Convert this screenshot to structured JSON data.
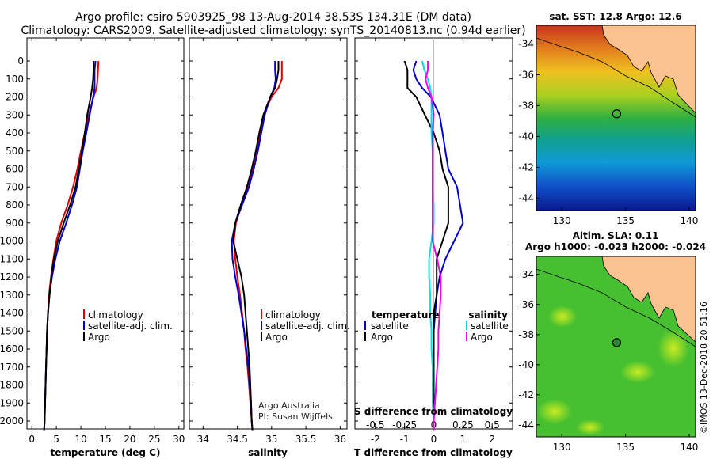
{
  "header": {
    "title_line1": "Argo profile: csiro 5903925_98 13-Aug-2014 38.53S 134.31E (DM data)",
    "title_line2": "Climatology: CARS2009. Satellite-adjusted climatology: synTS_20140813.nc (0.94d earlier)"
  },
  "side": {
    "sst_title": "sat. SST: 12.8 Argo: 12.6",
    "sla_title1": "Altim. SLA: 0.11",
    "sla_title2": "Argo h1000: -0.023 h2000: -0.024",
    "credit": "©IMOS 13-Dec-2018 20:51:16"
  },
  "legend": {
    "climatology": "climatology",
    "satellite_adj": "satellite-adj. clim.",
    "argo": "Argo",
    "temperature": "temperature",
    "salinity": "salinity",
    "satellite": "satellite"
  },
  "annotations": {
    "argo_australia": "Argo Australia",
    "pi": "PI: Susan Wijffels",
    "s_diff": "S difference from climatology"
  },
  "colors": {
    "climatology": "#e00000",
    "satellite": "#0000cc",
    "argo": "#000000",
    "sal_satellite": "#00e0e0",
    "sal_argo": "#ee00ee",
    "land": "#f9c28f",
    "coast": "#000000"
  },
  "chart_data": [
    {
      "type": "line",
      "panel": "temperature",
      "xlabel": "temperature (deg C)",
      "ylabel": "",
      "xlim": [
        -1,
        31
      ],
      "ylim": [
        2080,
        0
      ],
      "xticks": [
        0,
        5,
        10,
        15,
        20,
        25,
        30
      ],
      "yticks": [
        0,
        100,
        200,
        300,
        400,
        500,
        600,
        700,
        800,
        900,
        1000,
        1100,
        1200,
        1300,
        1400,
        1500,
        1600,
        1700,
        1800,
        1900,
        2000
      ],
      "depth": [
        0,
        50,
        100,
        150,
        200,
        300,
        400,
        500,
        600,
        700,
        800,
        900,
        1000,
        1100,
        1200,
        1300,
        1400,
        1500,
        1600,
        1700,
        1800,
        1900,
        2000,
        2050
      ],
      "series": [
        {
          "name": "climatology",
          "values": [
            13.6,
            13.5,
            13.4,
            13.2,
            12.6,
            11.6,
            10.8,
            10.0,
            9.3,
            8.4,
            7.3,
            6.0,
            5.0,
            4.4,
            3.9,
            3.5,
            3.3,
            3.1,
            3.0,
            2.9,
            2.8,
            2.7,
            2.6,
            2.5
          ]
        },
        {
          "name": "satellite-adj. clim.",
          "values": [
            13.0,
            12.8,
            12.8,
            12.8,
            12.5,
            11.8,
            11.1,
            10.4,
            9.8,
            9.2,
            8.2,
            7.0,
            5.7,
            4.8,
            4.1,
            3.6,
            3.3,
            3.1,
            3.0,
            2.9,
            2.8,
            2.7,
            2.6,
            2.5
          ]
        },
        {
          "name": "Argo",
          "values": [
            12.6,
            12.6,
            12.5,
            12.3,
            12.0,
            11.3,
            10.8,
            10.2,
            9.6,
            8.9,
            7.8,
            6.5,
            5.3,
            4.5,
            4.0,
            3.6,
            3.3,
            3.1,
            3.0,
            2.9,
            2.8,
            2.7,
            2.6,
            2.5
          ]
        }
      ]
    },
    {
      "type": "line",
      "panel": "salinity",
      "xlabel": "salinity",
      "ylabel": "",
      "xlim": [
        33.8,
        36.1
      ],
      "ylim": [
        2080,
        0
      ],
      "xticks": [
        34,
        34.5,
        35,
        35.5,
        36
      ],
      "depth": [
        0,
        50,
        100,
        150,
        200,
        300,
        400,
        500,
        600,
        700,
        800,
        900,
        1000,
        1100,
        1200,
        1300,
        1400,
        1500,
        1600,
        1700,
        1800,
        1900,
        2000,
        2050
      ],
      "series": [
        {
          "name": "climatology",
          "values": [
            35.15,
            35.15,
            35.15,
            35.1,
            35.0,
            34.88,
            34.83,
            34.78,
            34.72,
            34.65,
            34.56,
            34.48,
            34.45,
            34.47,
            34.5,
            34.54,
            34.57,
            34.6,
            34.62,
            34.65,
            34.67,
            34.69,
            34.71,
            34.72
          ]
        },
        {
          "name": "satellite-adj. clim.",
          "values": [
            35.05,
            35.05,
            35.06,
            35.04,
            34.98,
            34.9,
            34.85,
            34.8,
            34.74,
            34.67,
            34.57,
            34.47,
            34.42,
            34.43,
            34.47,
            34.52,
            34.56,
            34.6,
            34.63,
            34.66,
            34.68,
            34.7,
            34.71,
            34.72
          ]
        },
        {
          "name": "Argo",
          "values": [
            35.1,
            35.1,
            35.08,
            35.05,
            34.98,
            34.88,
            34.82,
            34.77,
            34.71,
            34.64,
            34.55,
            34.47,
            34.44,
            34.5,
            34.56,
            34.6,
            34.62,
            34.64,
            34.66,
            34.68,
            34.69,
            34.7,
            34.71,
            34.72
          ]
        }
      ]
    },
    {
      "type": "line",
      "panel": "difference",
      "xlabel": "T difference from climatology",
      "xlabel2": "S difference from climatology",
      "ylabel": "",
      "xlim": [
        -2.7,
        2.7
      ],
      "ylim": [
        2080,
        0
      ],
      "xticks": [
        -2,
        -1,
        0,
        1,
        2
      ],
      "xticks2": [
        -0.5,
        -0.25,
        0,
        0.25,
        0.5
      ],
      "xticklabels2": [
        "-0.5",
        "-0.25",
        "0",
        "0.25",
        "0.5"
      ],
      "depth": [
        0,
        50,
        100,
        150,
        200,
        300,
        400,
        500,
        600,
        700,
        800,
        900,
        1000,
        1100,
        1200,
        1300,
        1400,
        1500,
        1600,
        1700,
        1800,
        1900,
        2000,
        2050
      ],
      "series": [
        {
          "name": "temperature satellite",
          "values": [
            -0.6,
            -0.7,
            -0.6,
            -0.4,
            -0.1,
            0.2,
            0.3,
            0.4,
            0.5,
            0.8,
            0.9,
            1.0,
            0.7,
            0.4,
            0.2,
            0.1,
            0.05,
            0.0,
            0.0,
            0.0,
            0.0,
            0.0,
            0.0,
            0.0
          ]
        },
        {
          "name": "temperature Argo",
          "values": [
            -1.0,
            -0.9,
            -0.9,
            -0.9,
            -0.6,
            -0.3,
            0.0,
            0.2,
            0.3,
            0.5,
            0.5,
            0.5,
            0.3,
            0.1,
            0.1,
            0.1,
            0.0,
            0.0,
            0.0,
            0.0,
            0.0,
            0.0,
            0.0,
            0.0
          ]
        },
        {
          "name": "salinity satellite",
          "values": [
            -0.1,
            -0.08,
            -0.05,
            -0.03,
            -0.02,
            -0.02,
            -0.02,
            -0.01,
            -0.01,
            -0.01,
            0.0,
            0.0,
            -0.02,
            -0.04,
            -0.04,
            -0.03,
            -0.03,
            -0.02,
            -0.02,
            -0.01,
            -0.01,
            -0.01,
            0.0,
            0.0
          ]
        },
        {
          "name": "salinity Argo",
          "values": [
            -0.05,
            -0.05,
            -0.07,
            -0.05,
            -0.02,
            0.0,
            -0.01,
            -0.01,
            -0.01,
            -0.01,
            -0.01,
            -0.01,
            -0.01,
            0.03,
            0.06,
            0.06,
            0.05,
            0.04,
            0.04,
            0.03,
            0.02,
            0.01,
            0.0,
            0.0
          ]
        }
      ]
    }
  ],
  "maps": {
    "lon_ticks": [
      130,
      135,
      140
    ],
    "lat_ticks": [
      -34,
      -36,
      -38,
      -40,
      -42,
      -44
    ],
    "lon_range": [
      128,
      140.5
    ],
    "lat_range": [
      -44.8,
      -32.8
    ],
    "profile_lon": 134.31,
    "profile_lat": -38.53
  }
}
